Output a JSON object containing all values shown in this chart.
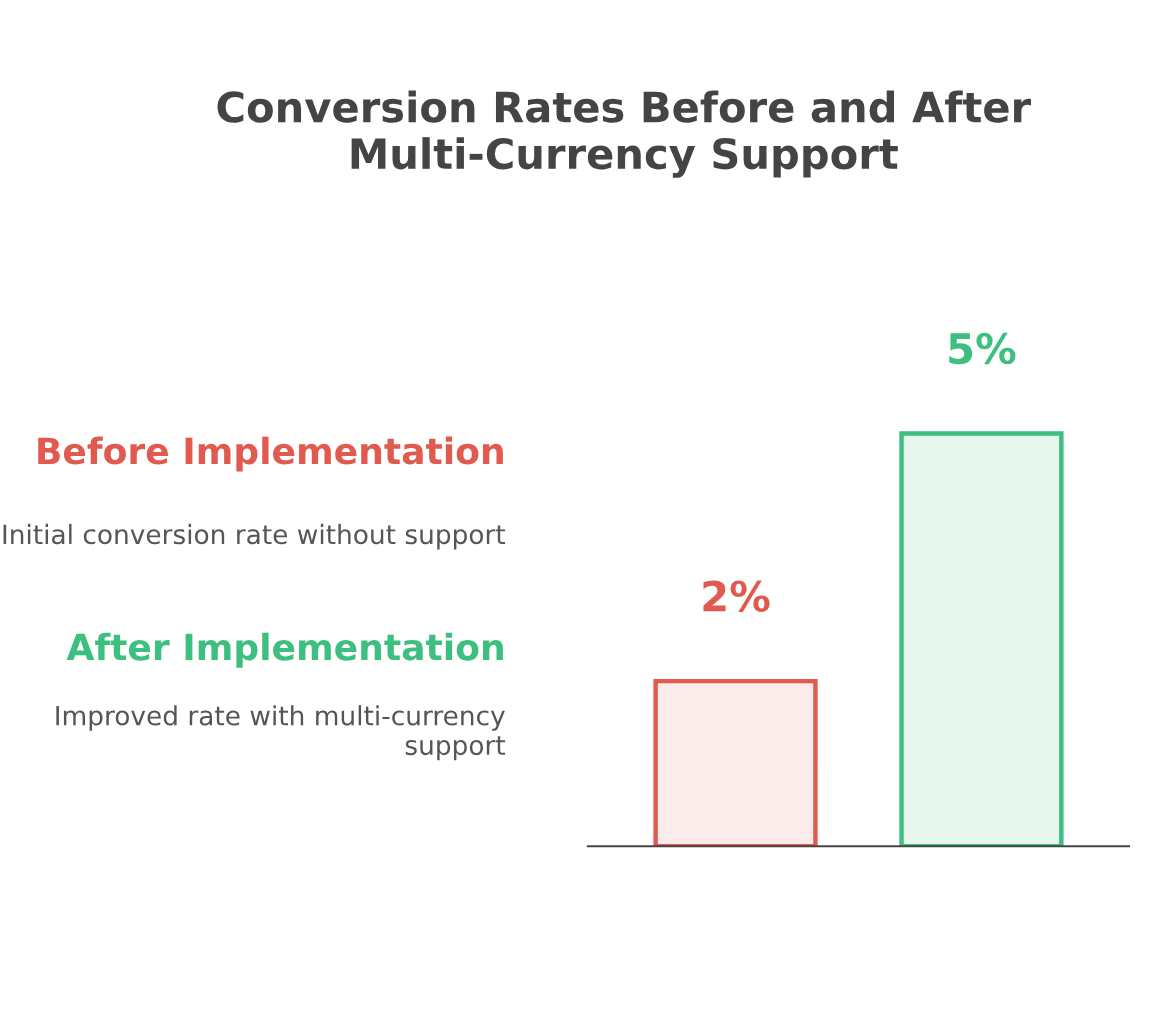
{
  "chart_data": {
    "type": "bar",
    "title": "Conversion Rates Before and After Multi-Currency Support",
    "categories": [
      null,
      null
    ],
    "values": [
      2,
      5
    ],
    "value_labels": [
      "2%",
      "5%"
    ],
    "colors": [
      "#e05a4f",
      "#3dbf7f"
    ],
    "annotations": [
      "Before Implementation",
      "Initial conversion rate without support",
      "After Implementation",
      "Improved rate with multi-currency support"
    ]
  }
}
